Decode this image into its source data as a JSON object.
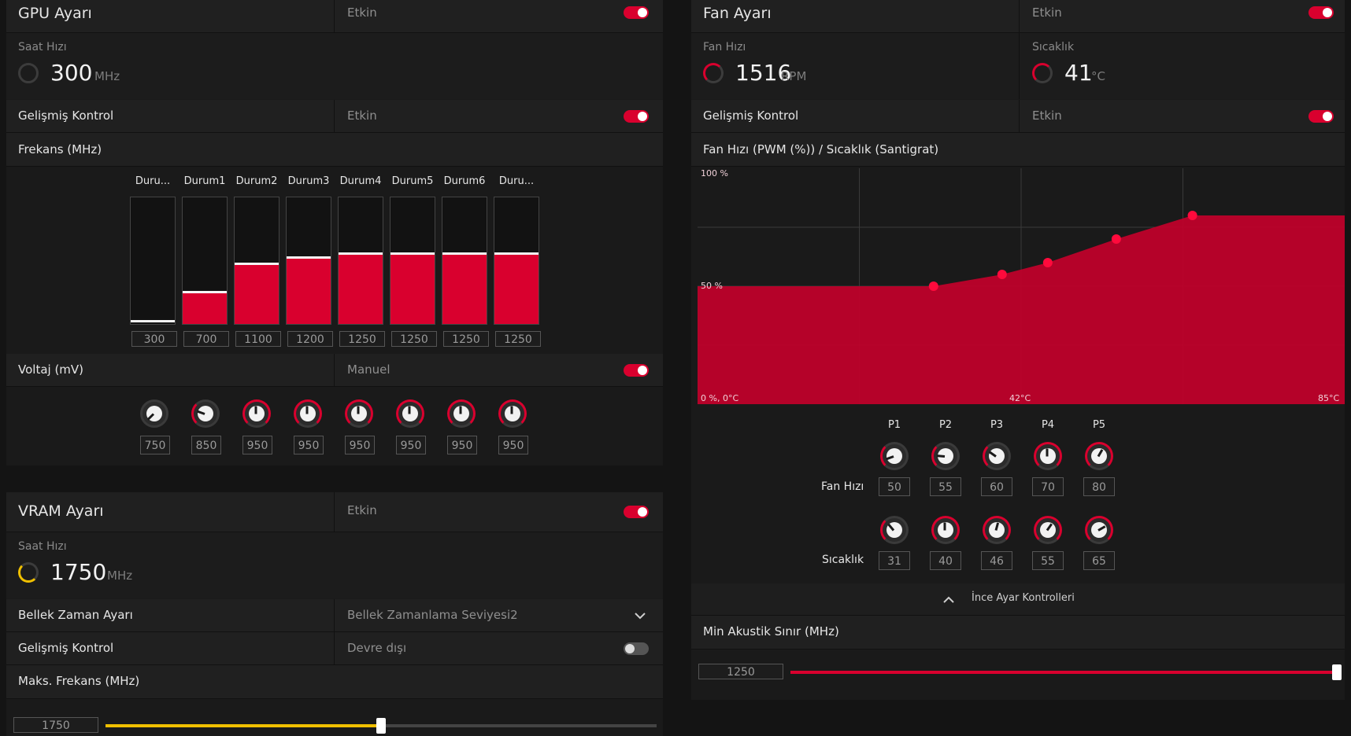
{
  "gpu": {
    "title": "GPU Ayarı",
    "enabled_text": "Etkin",
    "clock_label": "Saat Hızı",
    "clock_value": "300",
    "clock_unit": "MHz",
    "advanced_label": "Gelişmiş Kontrol",
    "advanced_value": "Etkin",
    "freq_title": "Frekans (MHz)",
    "states": [
      {
        "label": "Duru...",
        "value": "300",
        "fill": 0.0
      },
      {
        "label": "Durum1",
        "value": "700",
        "fill": 0.25
      },
      {
        "label": "Durum2",
        "value": "1100",
        "fill": 0.47
      },
      {
        "label": "Durum3",
        "value": "1200",
        "fill": 0.52
      },
      {
        "label": "Durum4",
        "value": "1250",
        "fill": 0.55
      },
      {
        "label": "Durum5",
        "value": "1250",
        "fill": 0.55
      },
      {
        "label": "Durum6",
        "value": "1250",
        "fill": 0.55
      },
      {
        "label": "Duru...",
        "value": "1250",
        "fill": 0.55
      }
    ],
    "voltage_label": "Voltaj (mV)",
    "voltage_mode": "Manuel",
    "voltages": [
      "750",
      "850",
      "950",
      "950",
      "950",
      "950",
      "950",
      "950"
    ]
  },
  "vram": {
    "title": "VRAM Ayarı",
    "enabled_text": "Etkin",
    "clock_label": "Saat Hızı",
    "clock_value": "1750",
    "clock_unit": "MHz",
    "timing_label": "Bellek Zaman Ayarı",
    "timing_value": "Bellek Zamanlama Seviyesi2",
    "advanced_label": "Gelişmiş Kontrol",
    "advanced_value": "Devre dışı",
    "max_freq_label": "Maks. Frekans (MHz)",
    "max_freq_value": "1750",
    "max_freq_fraction": 0.5
  },
  "fan": {
    "title": "Fan Ayarı",
    "enabled_text": "Etkin",
    "speed_label": "Fan Hızı",
    "speed_value": "1516",
    "speed_unit": "RPM",
    "temp_label": "Sıcaklık",
    "temp_value": "41",
    "temp_unit": "°C",
    "advanced_label": "Gelişmiş Kontrol",
    "advanced_value": "Etkin",
    "curve_title": "Fan Hızı (PWM (%)) / Sıcaklık (Santigrat)",
    "points": [
      "P1",
      "P2",
      "P3",
      "P4",
      "P5"
    ],
    "row_fan_label": "Fan Hızı",
    "row_temp_label": "Sıcaklık",
    "fan_values": [
      "50",
      "55",
      "60",
      "70",
      "80"
    ],
    "temp_values": [
      "31",
      "40",
      "46",
      "55",
      "65"
    ],
    "fine_tune_label": "İnce Ayar Kontrolleri",
    "min_acoustic_label": "Min Akustik Sınır (MHz)",
    "min_acoustic_value": "1250",
    "min_acoustic_fraction": 1.0
  },
  "chart_data": {
    "type": "area",
    "title": "Fan Hızı (PWM (%)) / Sıcaklık (Santigrat)",
    "y_labels": [
      "100 %",
      "50 %",
      "0 %, 0°C"
    ],
    "x_labels": [
      "42°C",
      "85°C"
    ],
    "x": [
      0,
      31,
      40,
      46,
      55,
      65,
      85
    ],
    "y": [
      50,
      50,
      55,
      60,
      70,
      80,
      80
    ],
    "xlim": [
      0,
      85
    ],
    "ylim": [
      0,
      100
    ],
    "grid": true
  },
  "colors": {
    "accent": "#d9002e",
    "vram_accent": "#f0c000"
  }
}
